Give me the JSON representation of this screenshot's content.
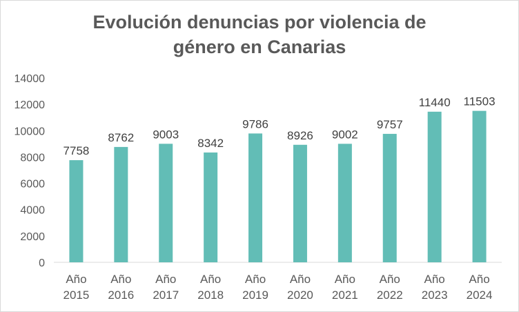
{
  "chart_data": {
    "type": "bar",
    "title_lines": [
      "Evolución denuncias por violencia de",
      "género en Canarias"
    ],
    "categories": [
      [
        "Año",
        "2015"
      ],
      [
        "Año",
        "2016"
      ],
      [
        "Año",
        "2017"
      ],
      [
        "Año",
        "2018"
      ],
      [
        "Año",
        "2019"
      ],
      [
        "Año",
        "2020"
      ],
      [
        "Año",
        "2021"
      ],
      [
        "Año",
        "2022"
      ],
      [
        "Año",
        "2023"
      ],
      [
        "Año",
        "2024"
      ]
    ],
    "values": [
      7758,
      8762,
      9003,
      8342,
      9786,
      8926,
      9002,
      9757,
      11440,
      11503
    ],
    "ylim": [
      0,
      14000
    ],
    "yticks": [
      0,
      2000,
      4000,
      6000,
      8000,
      10000,
      12000,
      14000
    ],
    "bar_color": "#62bdb6",
    "grid": false,
    "legend": "none",
    "data_labels": true
  }
}
